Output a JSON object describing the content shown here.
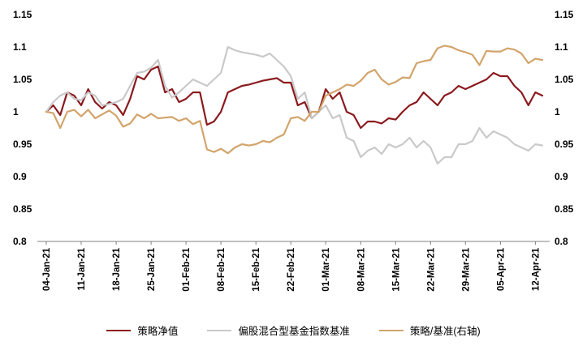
{
  "page": {
    "background": "#ffffff"
  },
  "chart_data": {
    "type": "line",
    "title": "",
    "grid": false,
    "legend_position": "bottom",
    "axis_color": "#808080",
    "text_color": "#000000",
    "ylim": [
      0.8,
      1.15
    ],
    "y_ticks": [
      0.8,
      0.85,
      0.9,
      0.95,
      1,
      1.05,
      1.1,
      1.15
    ],
    "y_axis_left": true,
    "y_axis_right": true,
    "n_points": 72,
    "x_tick_labels": [
      "04-Jan-21",
      "11-Jan-21",
      "18-Jan-21",
      "25-Jan-21",
      "01-Feb-21",
      "08-Feb-21",
      "15-Feb-21",
      "22-Feb-21",
      "01-Mar-21",
      "08-Mar-21",
      "15-Mar-21",
      "22-Mar-21",
      "29-Mar-21",
      "05-Apr-21",
      "12-Apr-21"
    ],
    "x_tick_indices": [
      0,
      5,
      10,
      15,
      20,
      25,
      30,
      35,
      40,
      45,
      50,
      55,
      60,
      65,
      70
    ],
    "series": [
      {
        "name": "策略净值",
        "color": "#8B1A1E",
        "width": 2.2,
        "axis": "left",
        "values": [
          1.0,
          1.01,
          0.995,
          1.03,
          1.025,
          1.01,
          1.035,
          1.015,
          1.005,
          1.015,
          1.01,
          0.995,
          1.02,
          1.055,
          1.05,
          1.065,
          1.07,
          1.03,
          1.035,
          1.015,
          1.02,
          1.03,
          1.03,
          0.98,
          0.985,
          1.0,
          1.03,
          1.035,
          1.04,
          1.042,
          1.045,
          1.048,
          1.05,
          1.052,
          1.045,
          1.045,
          1.01,
          1.015,
          0.99,
          1.0,
          1.035,
          1.02,
          1.03,
          1.0,
          0.995,
          0.975,
          0.985,
          0.985,
          0.982,
          0.99,
          0.988,
          1.0,
          1.01,
          1.015,
          1.03,
          1.02,
          1.01,
          1.025,
          1.03,
          1.04,
          1.035,
          1.04,
          1.045,
          1.05,
          1.06,
          1.055,
          1.055,
          1.04,
          1.03,
          1.01,
          1.03,
          1.025
        ]
      },
      {
        "name": "偏股混合型基金指数基准",
        "color": "#C9C9C9",
        "width": 2.2,
        "axis": "left",
        "values": [
          1.0,
          1.015,
          1.025,
          1.03,
          1.02,
          1.018,
          1.03,
          1.025,
          1.01,
          1.012,
          1.015,
          1.02,
          1.04,
          1.06,
          1.062,
          1.068,
          1.08,
          1.04,
          1.022,
          1.03,
          1.04,
          1.05,
          1.045,
          1.04,
          1.05,
          1.06,
          1.1,
          1.095,
          1.092,
          1.09,
          1.088,
          1.085,
          1.09,
          1.08,
          1.07,
          1.055,
          1.02,
          1.03,
          0.99,
          1.0,
          1.01,
          0.99,
          0.995,
          0.96,
          0.955,
          0.93,
          0.94,
          0.945,
          0.935,
          0.95,
          0.945,
          0.95,
          0.96,
          0.945,
          0.955,
          0.945,
          0.92,
          0.93,
          0.93,
          0.95,
          0.95,
          0.955,
          0.975,
          0.96,
          0.97,
          0.965,
          0.96,
          0.95,
          0.945,
          0.94,
          0.95,
          0.948
        ]
      },
      {
        "name": "策略/基准(右轴)",
        "color": "#D2A46B",
        "width": 2.2,
        "axis": "right",
        "values": [
          1.0,
          0.998,
          0.975,
          1.0,
          1.003,
          0.993,
          1.003,
          0.99,
          0.996,
          1.002,
          0.994,
          0.977,
          0.982,
          0.996,
          0.99,
          0.997,
          0.99,
          0.991,
          0.992,
          0.986,
          0.99,
          0.981,
          0.986,
          0.942,
          0.938,
          0.943,
          0.936,
          0.945,
          0.95,
          0.948,
          0.95,
          0.955,
          0.953,
          0.96,
          0.965,
          0.99,
          0.992,
          0.986,
          1.0,
          1.0,
          1.025,
          1.03,
          1.035,
          1.042,
          1.04,
          1.048,
          1.06,
          1.065,
          1.05,
          1.042,
          1.046,
          1.053,
          1.052,
          1.075,
          1.078,
          1.08,
          1.098,
          1.102,
          1.1,
          1.095,
          1.092,
          1.088,
          1.072,
          1.094,
          1.093,
          1.093,
          1.098,
          1.096,
          1.09,
          1.075,
          1.082,
          1.08
        ]
      }
    ]
  }
}
